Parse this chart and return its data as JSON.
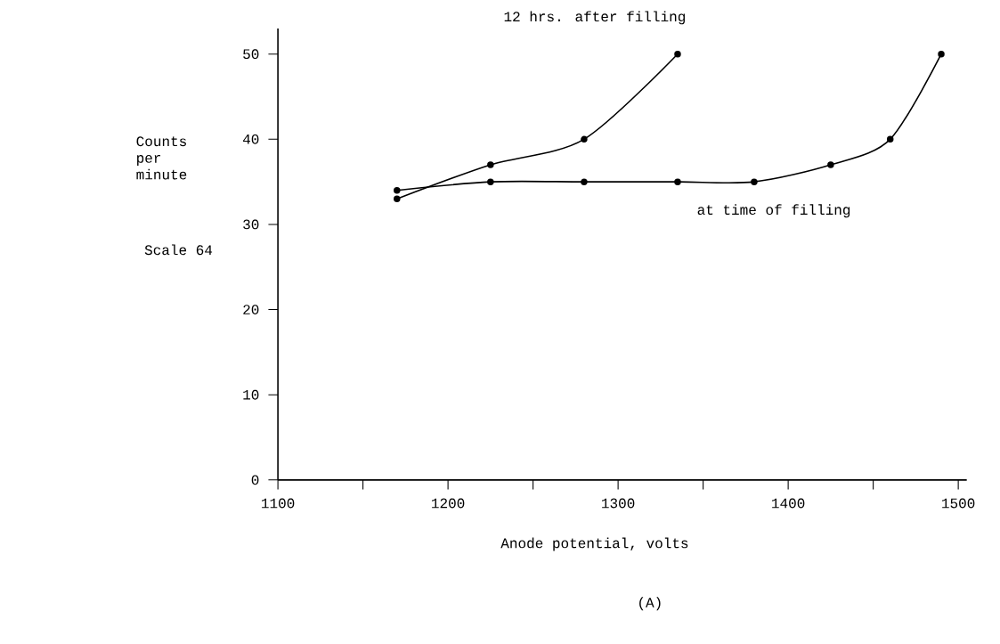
{
  "chart_data": {
    "type": "line",
    "xlabel": "Anode potential, volts",
    "ylabel": "Counts per minute",
    "annotations": [
      "Scale 64",
      "(A)"
    ],
    "series": [
      {
        "name": "12 hrs. after filling",
        "color": "#000000",
        "x": [
          1170,
          1225,
          1280,
          1335
        ],
        "values": [
          33,
          37,
          40,
          50
        ]
      },
      {
        "name": "at time of filling",
        "color": "#000000",
        "x": [
          1170,
          1225,
          1280,
          1335,
          1380,
          1425,
          1460,
          1490
        ],
        "values": [
          34,
          35,
          35,
          35,
          35,
          37,
          40,
          50
        ]
      }
    ],
    "xlim": [
      1100,
      1505
    ],
    "ylim": [
      0,
      53
    ],
    "xticks": [
      1100,
      {
        "value": 1150,
        "label": null
      },
      1200,
      {
        "value": 1250,
        "label": null
      },
      1300,
      {
        "value": 1350,
        "label": null
      },
      1400,
      {
        "value": 1450,
        "label": null
      },
      1500
    ],
    "yticks": [
      0,
      10,
      20,
      30,
      40,
      50
    ],
    "marker": "circle",
    "line_style": "solid",
    "grid": false,
    "legend": false
  }
}
